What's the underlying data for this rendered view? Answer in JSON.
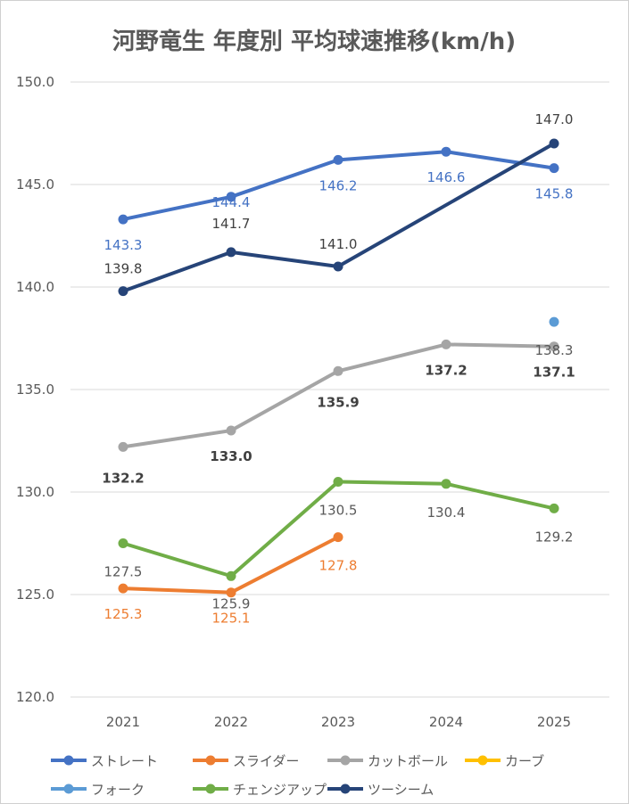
{
  "chart_data": {
    "type": "line",
    "title": "河野竜生 年度別 平均球速推移(km/h)",
    "xlabel": "",
    "ylabel": "",
    "categories": [
      "2021",
      "2022",
      "2023",
      "2024",
      "2025"
    ],
    "ylim": [
      120.0,
      150.0
    ],
    "yticks": [
      "120.0",
      "125.0",
      "130.0",
      "135.0",
      "140.0",
      "145.0",
      "150.0"
    ],
    "grid": true,
    "legend_position": "bottom",
    "series": [
      {
        "name": "ストレート",
        "color": "#4472C4",
        "values": [
          143.3,
          144.4,
          146.2,
          146.6,
          145.8
        ],
        "labels": [
          "143.3",
          "144.4",
          "146.2",
          "146.6",
          "145.8"
        ],
        "label_color": "#4472C4",
        "label_bold": false
      },
      {
        "name": "スライダー",
        "color": "#ED7D31",
        "values": [
          125.3,
          125.1,
          127.8,
          null,
          null
        ],
        "labels": [
          "125.3",
          "125.1",
          "127.8",
          "",
          ""
        ],
        "label_color": "#ED7D31",
        "label_bold": false
      },
      {
        "name": "カットボール",
        "color": "#A5A5A5",
        "values": [
          132.2,
          133.0,
          135.9,
          137.2,
          137.1
        ],
        "labels": [
          "132.2",
          "133.0",
          "135.9",
          "137.2",
          "137.1"
        ],
        "label_color": "#404040",
        "label_bold": true
      },
      {
        "name": "カーブ",
        "color": "#FFC000",
        "values": [
          null,
          null,
          null,
          null,
          null
        ],
        "labels": [
          "",
          "",
          "",
          "",
          ""
        ],
        "label_color": "#595959",
        "label_bold": false
      },
      {
        "name": "フォーク",
        "color": "#5B9BD5",
        "values": [
          null,
          null,
          null,
          null,
          138.3
        ],
        "labels": [
          "",
          "",
          "",
          "",
          "138.3"
        ],
        "label_color": "#595959",
        "label_bold": false
      },
      {
        "name": "チェンジアップ",
        "color": "#70AD47",
        "values": [
          127.5,
          125.9,
          130.5,
          130.4,
          129.2
        ],
        "labels": [
          "127.5",
          "125.9",
          "130.5",
          "130.4",
          "129.2"
        ],
        "label_color": "#595959",
        "label_bold": false
      },
      {
        "name": "ツーシーム",
        "color": "#264478",
        "values": [
          139.8,
          141.7,
          141.0,
          null,
          147.0
        ],
        "labels": [
          "139.8",
          "141.7",
          "141.0",
          "",
          "147.0"
        ],
        "label_color": "#404040",
        "label_bold": false
      }
    ]
  }
}
